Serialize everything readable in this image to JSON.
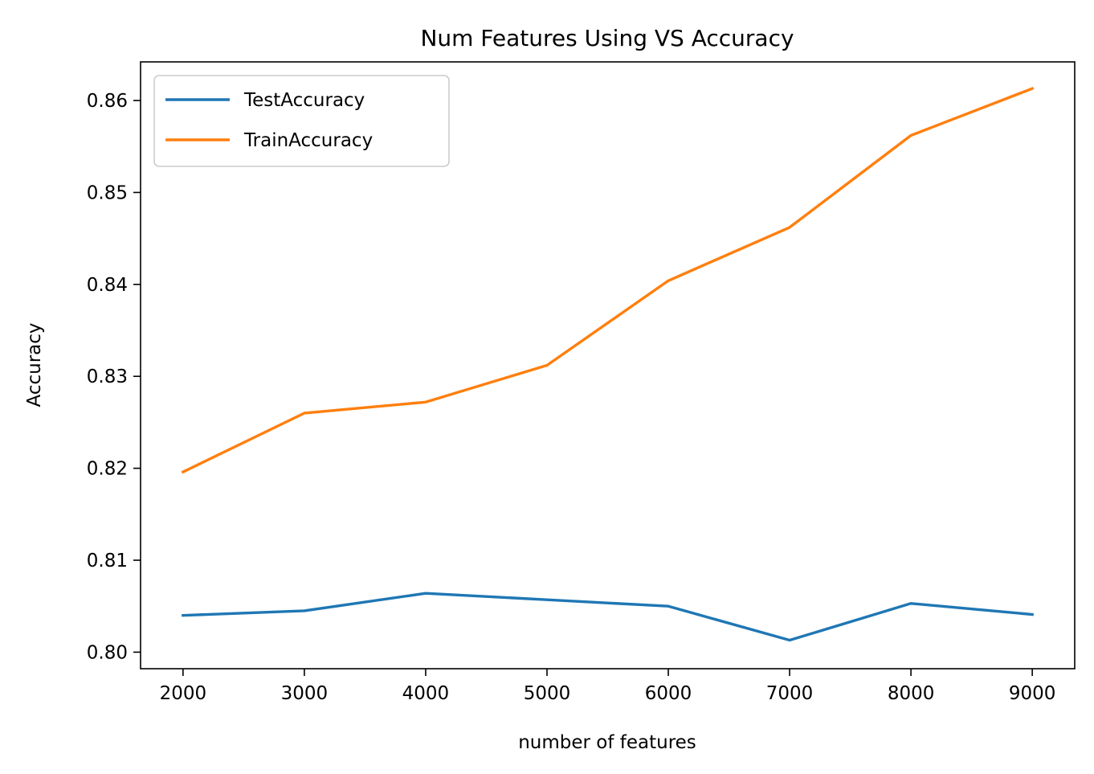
{
  "chart_data": {
    "type": "line",
    "title": "Num Features Using VS Accuracy",
    "xlabel": "number of features",
    "ylabel": "Accuracy",
    "x": [
      2000,
      3000,
      4000,
      5000,
      6000,
      7000,
      8000,
      9000
    ],
    "xlim": [
      1650,
      9350
    ],
    "ylim": [
      0.7982,
      0.8642
    ],
    "xticks": [
      2000,
      3000,
      4000,
      5000,
      6000,
      7000,
      8000,
      9000
    ],
    "xtick_labels": [
      "2000",
      "3000",
      "4000",
      "5000",
      "6000",
      "7000",
      "8000",
      "9000"
    ],
    "yticks": [
      0.8,
      0.81,
      0.82,
      0.83,
      0.84,
      0.85,
      0.86
    ],
    "ytick_labels": [
      "0.80",
      "0.81",
      "0.82",
      "0.83",
      "0.84",
      "0.85",
      "0.86"
    ],
    "grid": false,
    "legend_position": "upper-left",
    "series": [
      {
        "name": "TestAccuracy",
        "color": "#1f77b4",
        "values": [
          0.804,
          0.8045,
          0.8064,
          0.8057,
          0.805,
          0.8013,
          0.8053,
          0.8041
        ]
      },
      {
        "name": "TrainAccuracy",
        "color": "#ff7f0e",
        "values": [
          0.8196,
          0.826,
          0.8272,
          0.8312,
          0.8404,
          0.8462,
          0.8562,
          0.8613
        ]
      }
    ]
  }
}
